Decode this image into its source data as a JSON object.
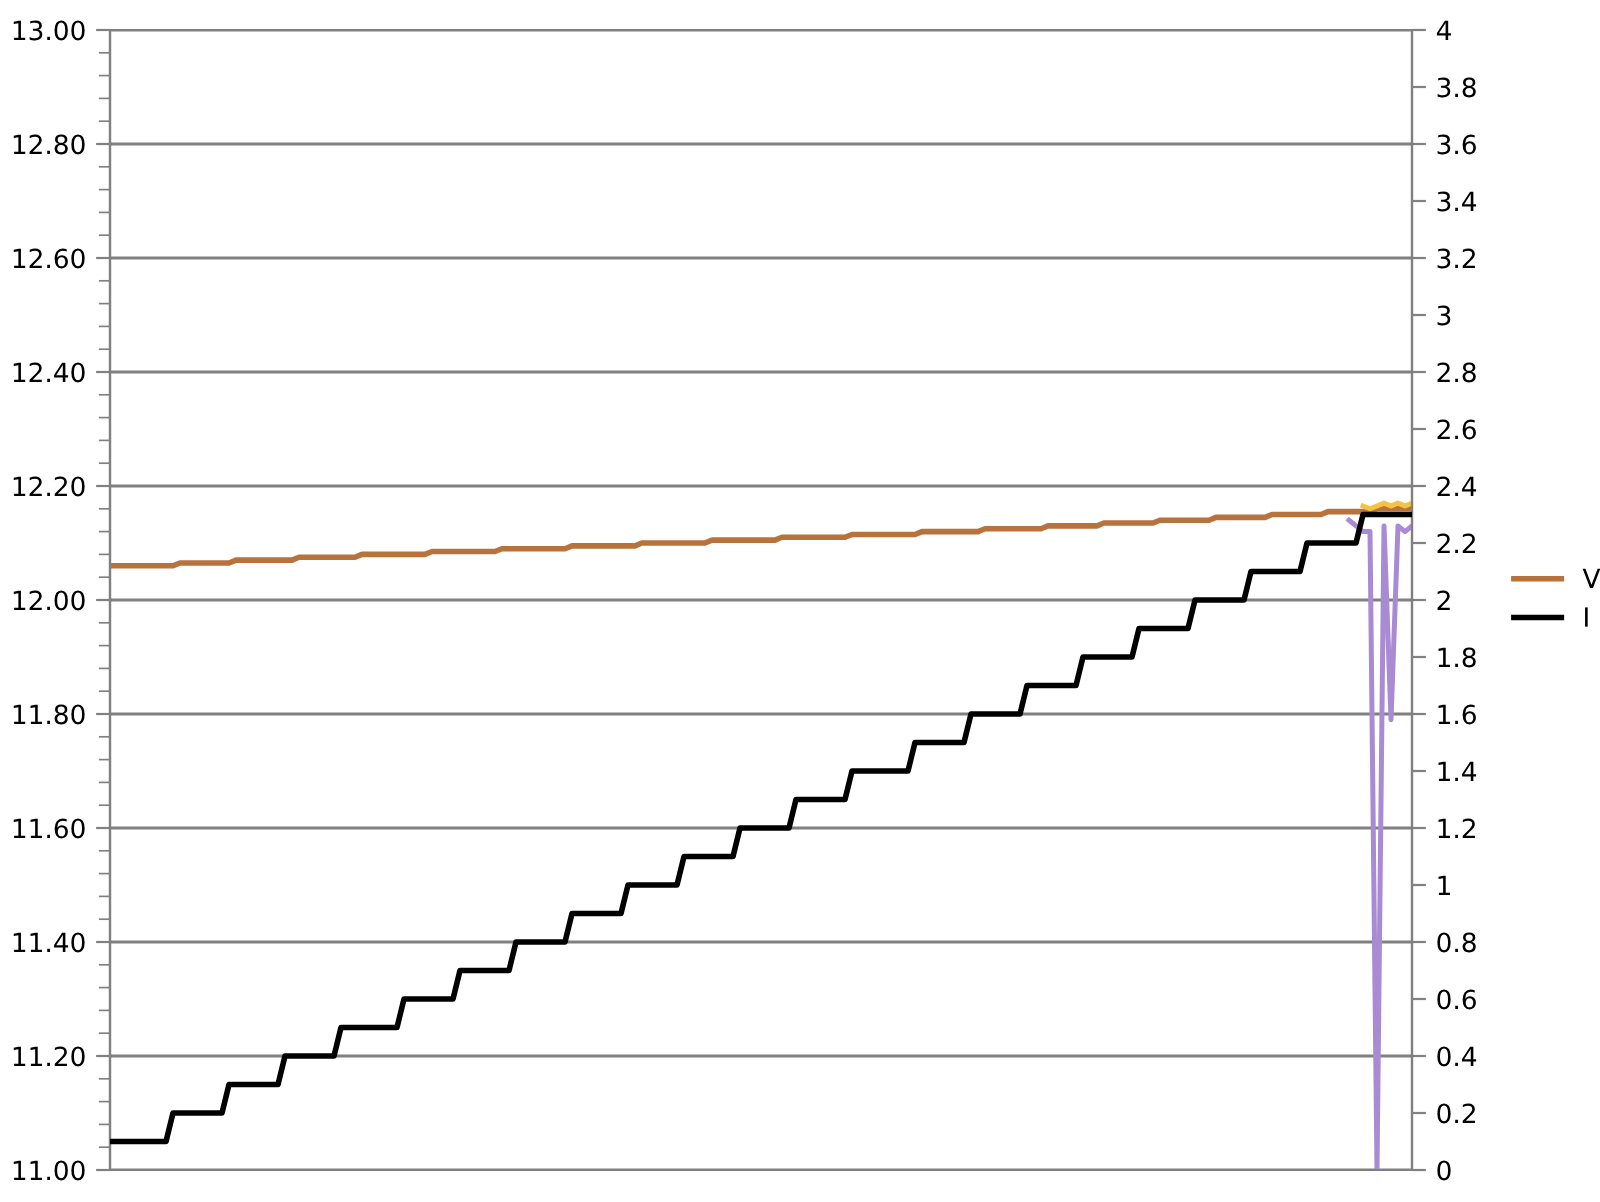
{
  "chart_data": {
    "type": "line",
    "categories": [
      null,
      null,
      null,
      null,
      null,
      null,
      null,
      null,
      null,
      null,
      null,
      null,
      null,
      null,
      null,
      null,
      null,
      null,
      null,
      null,
      null,
      null,
      null,
      null,
      null,
      null,
      null,
      null,
      null,
      null,
      null,
      null,
      null,
      null,
      null,
      null,
      null,
      null,
      null,
      null,
      null,
      null,
      null,
      null,
      null,
      null,
      null,
      null,
      null,
      null,
      null,
      null,
      null,
      null,
      null,
      null,
      null,
      null,
      null,
      null,
      null,
      null,
      null,
      null,
      null,
      null,
      null,
      null,
      null,
      null,
      null,
      null,
      null,
      null,
      null,
      null,
      null,
      null,
      null,
      null,
      null,
      null,
      null,
      null,
      null,
      null,
      null,
      null,
      null,
      null,
      null,
      null,
      null,
      null,
      null,
      null,
      null,
      null,
      null,
      null,
      null,
      null,
      null,
      null,
      null,
      null,
      null,
      null,
      null,
      null,
      null,
      null,
      null,
      null,
      null,
      null,
      null,
      null,
      null,
      null,
      null,
      null,
      null,
      null,
      null,
      null,
      null,
      null,
      null,
      null,
      null,
      null,
      null,
      null,
      null,
      null,
      null,
      null,
      null,
      null,
      null,
      null,
      null,
      null,
      null,
      null,
      null,
      null,
      null,
      null,
      null,
      null,
      null,
      null,
      null,
      null,
      null,
      null,
      null,
      null,
      null,
      null,
      null,
      null,
      null,
      null,
      null,
      null,
      null,
      null,
      null,
      null,
      null,
      null,
      null,
      null,
      null,
      null,
      null,
      null,
      null,
      null,
      null,
      null,
      null,
      null,
      null
    ],
    "series": [
      {
        "name": "V",
        "color": "#b8733c",
        "values": [
          12.06,
          12.06,
          12.06,
          12.06,
          12.06,
          12.06,
          12.06,
          12.06,
          12.06,
          12.06,
          12.065,
          12.065,
          12.065,
          12.065,
          12.065,
          12.065,
          12.065,
          12.065,
          12.07,
          12.07,
          12.07,
          12.07,
          12.07,
          12.07,
          12.07,
          12.07,
          12.07,
          12.075,
          12.075,
          12.075,
          12.075,
          12.075,
          12.075,
          12.075,
          12.075,
          12.075,
          12.08,
          12.08,
          12.08,
          12.08,
          12.08,
          12.08,
          12.08,
          12.08,
          12.08,
          12.08,
          12.085,
          12.085,
          12.085,
          12.085,
          12.085,
          12.085,
          12.085,
          12.085,
          12.085,
          12.085,
          12.09,
          12.09,
          12.09,
          12.09,
          12.09,
          12.09,
          12.09,
          12.09,
          12.09,
          12.09,
          12.095,
          12.095,
          12.095,
          12.095,
          12.095,
          12.095,
          12.095,
          12.095,
          12.095,
          12.095,
          12.1,
          12.1,
          12.1,
          12.1,
          12.1,
          12.1,
          12.1,
          12.1,
          12.1,
          12.1,
          12.105,
          12.105,
          12.105,
          12.105,
          12.105,
          12.105,
          12.105,
          12.105,
          12.105,
          12.105,
          12.11,
          12.11,
          12.11,
          12.11,
          12.11,
          12.11,
          12.11,
          12.11,
          12.11,
          12.11,
          12.115,
          12.115,
          12.115,
          12.115,
          12.115,
          12.115,
          12.115,
          12.115,
          12.115,
          12.115,
          12.12,
          12.12,
          12.12,
          12.12,
          12.12,
          12.12,
          12.12,
          12.12,
          12.12,
          12.125,
          12.125,
          12.125,
          12.125,
          12.125,
          12.125,
          12.125,
          12.125,
          12.125,
          12.13,
          12.13,
          12.13,
          12.13,
          12.13,
          12.13,
          12.13,
          12.13,
          12.135,
          12.135,
          12.135,
          12.135,
          12.135,
          12.135,
          12.135,
          12.135,
          12.14,
          12.14,
          12.14,
          12.14,
          12.14,
          12.14,
          12.14,
          12.14,
          12.145,
          12.145,
          12.145,
          12.145,
          12.145,
          12.145,
          12.145,
          12.145,
          12.15,
          12.15,
          12.15,
          12.15,
          12.15,
          12.15,
          12.15,
          12.15,
          12.155,
          12.155,
          12.155,
          12.155,
          12.155,
          12.155,
          12.155,
          12.16,
          12.16,
          12.16,
          12.16,
          12.16,
          12.16
        ]
      },
      {
        "color": "#a98bd4",
        "values": [
          null,
          null,
          null,
          null,
          null,
          null,
          null,
          null,
          null,
          null,
          null,
          null,
          null,
          null,
          null,
          null,
          null,
          null,
          null,
          null,
          null,
          null,
          null,
          null,
          null,
          null,
          null,
          null,
          null,
          null,
          null,
          null,
          null,
          null,
          null,
          null,
          null,
          null,
          null,
          null,
          null,
          null,
          null,
          null,
          null,
          null,
          null,
          null,
          null,
          null,
          null,
          null,
          null,
          null,
          null,
          null,
          null,
          null,
          null,
          null,
          null,
          null,
          null,
          null,
          null,
          null,
          null,
          null,
          null,
          null,
          null,
          null,
          null,
          null,
          null,
          null,
          null,
          null,
          null,
          null,
          null,
          null,
          null,
          null,
          null,
          null,
          null,
          null,
          null,
          null,
          null,
          null,
          null,
          null,
          null,
          null,
          null,
          null,
          null,
          null,
          null,
          null,
          null,
          null,
          null,
          null,
          null,
          null,
          null,
          null,
          null,
          null,
          null,
          null,
          null,
          null,
          null,
          null,
          null,
          null,
          null,
          null,
          null,
          null,
          null,
          null,
          null,
          null,
          null,
          null,
          null,
          null,
          null,
          null,
          null,
          null,
          null,
          null,
          null,
          null,
          null,
          null,
          null,
          null,
          null,
          null,
          null,
          null,
          null,
          null,
          null,
          null,
          null,
          null,
          null,
          null,
          null,
          null,
          null,
          null,
          null,
          null,
          null,
          null,
          null,
          null,
          null,
          null,
          null,
          null,
          null,
          null,
          null,
          null,
          null,
          null,
          null,
          12.14,
          12.13,
          12.12,
          12.12,
          11.0,
          12.13,
          11.79,
          12.13,
          12.12,
          12.13
        ]
      },
      {
        "color": "#f5c342",
        "values": [
          null,
          null,
          null,
          null,
          null,
          null,
          null,
          null,
          null,
          null,
          null,
          null,
          null,
          null,
          null,
          null,
          null,
          null,
          null,
          null,
          null,
          null,
          null,
          null,
          null,
          null,
          null,
          null,
          null,
          null,
          null,
          null,
          null,
          null,
          null,
          null,
          null,
          null,
          null,
          null,
          null,
          null,
          null,
          null,
          null,
          null,
          null,
          null,
          null,
          null,
          null,
          null,
          null,
          null,
          null,
          null,
          null,
          null,
          null,
          null,
          null,
          null,
          null,
          null,
          null,
          null,
          null,
          null,
          null,
          null,
          null,
          null,
          null,
          null,
          null,
          null,
          null,
          null,
          null,
          null,
          null,
          null,
          null,
          null,
          null,
          null,
          null,
          null,
          null,
          null,
          null,
          null,
          null,
          null,
          null,
          null,
          null,
          null,
          null,
          null,
          null,
          null,
          null,
          null,
          null,
          null,
          null,
          null,
          null,
          null,
          null,
          null,
          null,
          null,
          null,
          null,
          null,
          null,
          null,
          null,
          null,
          null,
          null,
          null,
          null,
          null,
          null,
          null,
          null,
          null,
          null,
          null,
          null,
          null,
          null,
          null,
          null,
          null,
          null,
          null,
          null,
          null,
          null,
          null,
          null,
          null,
          null,
          null,
          null,
          null,
          null,
          null,
          null,
          null,
          null,
          null,
          null,
          null,
          null,
          null,
          null,
          null,
          null,
          null,
          null,
          null,
          null,
          null,
          null,
          null,
          null,
          null,
          null,
          null,
          null,
          null,
          null,
          null,
          null,
          12.165,
          12.16,
          12.165,
          12.17,
          12.165,
          12.17,
          12.165,
          12.17
        ]
      },
      {
        "name": "I",
        "color": "#000000",
        "axis": "y2",
        "values": [
          0.1,
          0.1,
          0.1,
          0.1,
          0.1,
          0.1,
          0.1,
          0.1,
          0.1,
          0.2,
          0.2,
          0.2,
          0.2,
          0.2,
          0.2,
          0.2,
          0.2,
          0.3,
          0.3,
          0.3,
          0.3,
          0.3,
          0.3,
          0.3,
          0.3,
          0.4,
          0.4,
          0.4,
          0.4,
          0.4,
          0.4,
          0.4,
          0.4,
          0.5,
          0.5,
          0.5,
          0.5,
          0.5,
          0.5,
          0.5,
          0.5,
          0.5,
          0.6,
          0.6,
          0.6,
          0.6,
          0.6,
          0.6,
          0.6,
          0.6,
          0.7,
          0.7,
          0.7,
          0.7,
          0.7,
          0.7,
          0.7,
          0.7,
          0.8,
          0.8,
          0.8,
          0.8,
          0.8,
          0.8,
          0.8,
          0.8,
          0.9,
          0.9,
          0.9,
          0.9,
          0.9,
          0.9,
          0.9,
          0.9,
          1.0,
          1.0,
          1.0,
          1.0,
          1.0,
          1.0,
          1.0,
          1.0,
          1.1,
          1.1,
          1.1,
          1.1,
          1.1,
          1.1,
          1.1,
          1.1,
          1.2,
          1.2,
          1.2,
          1.2,
          1.2,
          1.2,
          1.2,
          1.2,
          1.3,
          1.3,
          1.3,
          1.3,
          1.3,
          1.3,
          1.3,
          1.3,
          1.4,
          1.4,
          1.4,
          1.4,
          1.4,
          1.4,
          1.4,
          1.4,
          1.4,
          1.5,
          1.5,
          1.5,
          1.5,
          1.5,
          1.5,
          1.5,
          1.5,
          1.6,
          1.6,
          1.6,
          1.6,
          1.6,
          1.6,
          1.6,
          1.6,
          1.7,
          1.7,
          1.7,
          1.7,
          1.7,
          1.7,
          1.7,
          1.7,
          1.8,
          1.8,
          1.8,
          1.8,
          1.8,
          1.8,
          1.8,
          1.8,
          1.9,
          1.9,
          1.9,
          1.9,
          1.9,
          1.9,
          1.9,
          1.9,
          2.0,
          2.0,
          2.0,
          2.0,
          2.0,
          2.0,
          2.0,
          2.0,
          2.1,
          2.1,
          2.1,
          2.1,
          2.1,
          2.1,
          2.1,
          2.1,
          2.2,
          2.2,
          2.2,
          2.2,
          2.2,
          2.2,
          2.2,
          2.2,
          2.3,
          2.3,
          2.3,
          2.3,
          2.3,
          2.3,
          2.3,
          2.3
        ]
      }
    ],
    "ylim": [
      11.0,
      13.0
    ],
    "yticks": [
      {
        "value": 11.0,
        "label": "11.00"
      },
      {
        "value": 11.2,
        "label": "11.20"
      },
      {
        "value": 11.4,
        "label": "11.40"
      },
      {
        "value": 11.6,
        "label": "11.60"
      },
      {
        "value": 11.8,
        "label": "11.80"
      },
      {
        "value": 12.0,
        "label": "12.00"
      },
      {
        "value": 12.2,
        "label": "12.20"
      },
      {
        "value": 12.4,
        "label": "12.40"
      },
      {
        "value": 12.6,
        "label": "12.60"
      },
      {
        "value": 12.8,
        "label": "12.80"
      },
      {
        "value": 13.0,
        "label": "13.00"
      }
    ],
    "y2lim": [
      0,
      4
    ],
    "y2ticks": [
      0,
      0.2,
      0.4,
      0.6,
      0.8,
      1,
      1.2,
      1.4,
      1.6,
      1.8,
      2,
      2.2,
      2.4,
      2.6,
      2.8,
      3,
      3.2,
      3.4,
      3.6,
      3.8,
      4
    ],
    "grid": "y",
    "legend": "right",
    "marker": "none",
    "line_style": "solid"
  }
}
